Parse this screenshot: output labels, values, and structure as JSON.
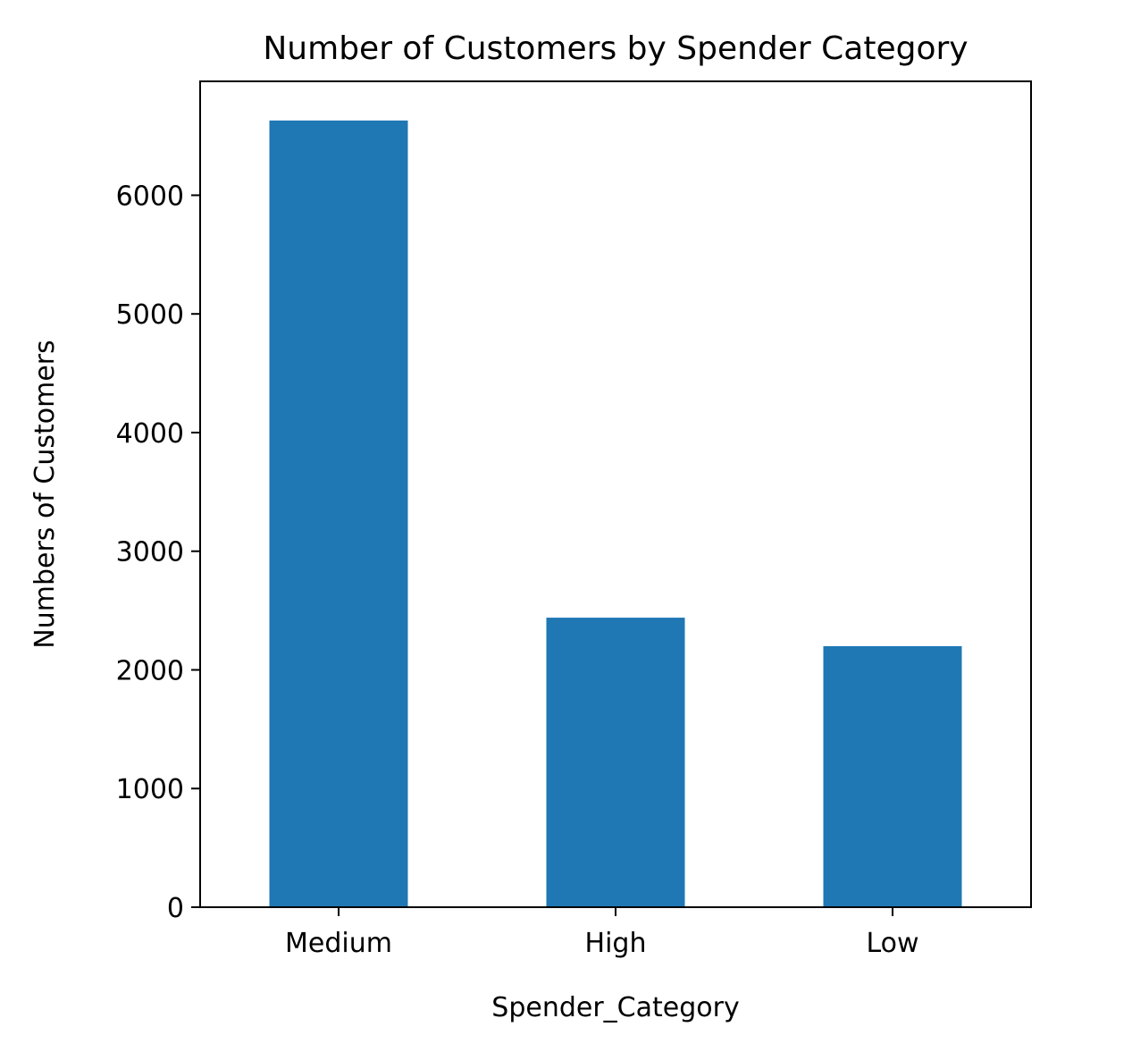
{
  "chart_data": {
    "type": "bar",
    "title": "Number of Customers by Spender Category",
    "xlabel": "Spender_Category",
    "ylabel": "Numbers of Customers",
    "categories": [
      "Medium",
      "High",
      "Low"
    ],
    "values": [
      6630,
      2440,
      2200
    ],
    "ylim": [
      0,
      6960
    ],
    "yticks": [
      0,
      1000,
      2000,
      3000,
      4000,
      5000,
      6000
    ],
    "ytick_labels": [
      "0",
      "1000",
      "2000",
      "3000",
      "4000",
      "5000",
      "6000"
    ],
    "bar_color": "#1f77b4",
    "grid": false,
    "legend": "none"
  }
}
